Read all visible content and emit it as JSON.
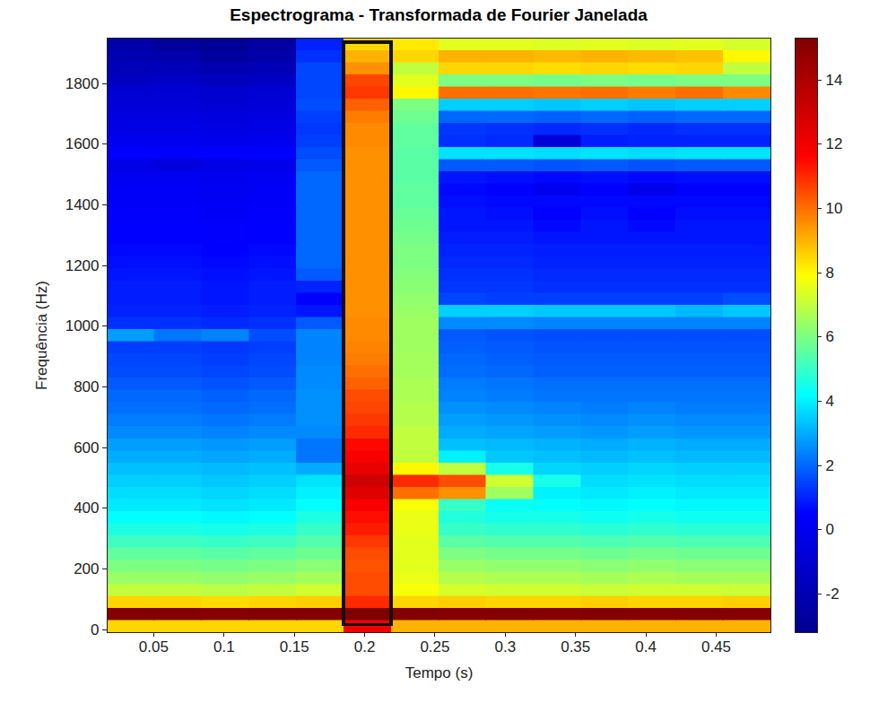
{
  "chart_data": {
    "type": "heatmap",
    "title": "Espectrograma - Transformada de Fourier Janelada",
    "xlabel": "Tempo (s)",
    "ylabel": "Frequência (Hz)",
    "xlim": [
      0.0169,
      0.4889
    ],
    "ylim": [
      -10,
      1950
    ],
    "xticks": [
      0.05,
      0.1,
      0.15,
      0.2,
      0.25,
      0.3,
      0.35,
      0.4,
      0.45
    ],
    "yticks": [
      0,
      200,
      400,
      600,
      800,
      1000,
      1200,
      1400,
      1600,
      1800
    ],
    "x_bins": [
      0.0169,
      0.0506,
      0.0843,
      0.118,
      0.1517,
      0.1854,
      0.2192,
      0.2529,
      0.2866,
      0.3203,
      0.354,
      0.3877,
      0.4214,
      0.4551,
      0.4889
    ],
    "y_bins": [
      -10,
      30,
      70,
      110,
      150,
      190,
      230,
      270,
      310,
      350,
      390,
      430,
      470,
      510,
      550,
      590,
      630,
      670,
      710,
      750,
      790,
      830,
      870,
      910,
      950,
      990,
      1030,
      1070,
      1110,
      1150,
      1190,
      1230,
      1270,
      1310,
      1350,
      1390,
      1430,
      1470,
      1510,
      1550,
      1590,
      1630,
      1670,
      1710,
      1750,
      1790,
      1830,
      1870,
      1910,
      1950
    ],
    "values": [
      [
        8.5,
        8.5,
        8.5,
        8.5,
        8.5,
        12,
        9,
        9,
        9,
        9,
        9,
        9,
        9,
        9
      ],
      [
        15.2,
        15.2,
        15.1,
        15.2,
        15.2,
        15.3,
        15.2,
        15.1,
        15.2,
        15.1,
        15.2,
        15.1,
        15.2,
        15.1
      ],
      [
        8.5,
        8.5,
        8.4,
        8.5,
        8.6,
        11,
        8.5,
        8.6,
        8.5,
        8.5,
        8.6,
        8.5,
        8.5,
        8.6
      ],
      [
        7,
        7,
        6.9,
        7,
        7.2,
        10.5,
        7.8,
        7.3,
        7.2,
        7.2,
        7.1,
        7.2,
        7.2,
        7.1
      ],
      [
        6.4,
        6.4,
        6.3,
        6.4,
        6.6,
        10.5,
        7.6,
        6.8,
        6.7,
        6.7,
        6.6,
        6.7,
        6.6,
        6.6
      ],
      [
        6,
        6,
        5.9,
        6,
        6.2,
        10.4,
        7.5,
        6.4,
        6.3,
        6.3,
        6.2,
        6.3,
        6.2,
        6.2
      ],
      [
        5.6,
        5.6,
        5.5,
        5.6,
        5.8,
        10.5,
        7.5,
        6,
        5.9,
        5.9,
        5.8,
        5.9,
        5.8,
        5.8
      ],
      [
        5.1,
        5.1,
        5,
        5.1,
        5.4,
        10.8,
        7.5,
        5.5,
        5.4,
        5.4,
        5.3,
        5.4,
        5.3,
        5.3
      ],
      [
        4.6,
        4.6,
        4.5,
        4.6,
        5,
        11.2,
        7.6,
        5,
        4.9,
        4.9,
        4.8,
        4.9,
        4.8,
        4.8
      ],
      [
        4.2,
        4.2,
        4.1,
        4.2,
        4.6,
        11.4,
        7.6,
        4.7,
        4.5,
        4.5,
        4.4,
        4.5,
        4.4,
        4.4
      ],
      [
        3.9,
        3.9,
        3.8,
        3.9,
        4.2,
        11.8,
        7.8,
        5,
        4.3,
        4.2,
        4.1,
        4.2,
        4.1,
        4.1
      ],
      [
        3.7,
        3.7,
        3.6,
        3.7,
        4,
        12.5,
        10,
        9.5,
        6.5,
        4,
        3.9,
        4,
        3.9,
        3.9
      ],
      [
        3.5,
        3.5,
        3.4,
        3.5,
        3.8,
        13,
        11,
        10.5,
        7.2,
        4.5,
        3.7,
        3.8,
        3.7,
        3.7
      ],
      [
        3.3,
        3.3,
        3.2,
        3.3,
        3,
        12.2,
        8,
        7,
        4.5,
        3.6,
        3.5,
        3.6,
        3.5,
        3.5
      ],
      [
        3,
        3,
        2.9,
        3,
        2.2,
        11.8,
        7,
        4,
        3.4,
        3.3,
        3.2,
        3.3,
        3.2,
        3.2
      ],
      [
        2.8,
        2.8,
        2.7,
        2.8,
        2.2,
        11.5,
        7,
        3.3,
        3.2,
        3.1,
        3,
        3.1,
        3,
        3
      ],
      [
        2.5,
        2.5,
        2.4,
        2.5,
        2.5,
        11,
        7,
        3,
        2.9,
        2.8,
        2.7,
        2.8,
        2.7,
        2.7
      ],
      [
        2.3,
        2.3,
        2.2,
        2.3,
        2.6,
        10.8,
        6.8,
        2.8,
        2.7,
        2.6,
        2.5,
        2.6,
        2.5,
        2.5
      ],
      [
        2.1,
        2.1,
        2,
        2.1,
        2.6,
        10.6,
        6.8,
        2.6,
        2.5,
        2.4,
        2.3,
        2.4,
        2.3,
        2.3
      ],
      [
        2,
        2,
        1.9,
        2,
        2.6,
        10.5,
        6.7,
        2.4,
        2.3,
        2.2,
        2.2,
        2.2,
        2.2,
        2.2
      ],
      [
        1.8,
        1.8,
        1.7,
        1.8,
        2.5,
        10.2,
        6.7,
        2.3,
        2.2,
        2.1,
        2.1,
        2.1,
        2.1,
        2.1
      ],
      [
        1.6,
        1.6,
        1.5,
        1.6,
        2.5,
        10,
        6.6,
        2.1,
        2,
        1.9,
        1.9,
        1.9,
        1.9,
        1.9
      ],
      [
        1.5,
        1.5,
        1.4,
        1.5,
        2.4,
        9.8,
        6.6,
        2,
        1.9,
        1.8,
        1.8,
        1.8,
        1.8,
        1.8
      ],
      [
        1.4,
        1.4,
        1.3,
        1.4,
        2.4,
        9.7,
        6.5,
        1.9,
        1.8,
        1.7,
        1.7,
        1.7,
        1.7,
        1.7
      ],
      [
        2.8,
        2.2,
        2.4,
        1.6,
        2.4,
        9.6,
        6.5,
        1.8,
        1.7,
        1.6,
        1.6,
        1.6,
        1.6,
        1.6
      ],
      [
        1.2,
        1.2,
        1.1,
        1.2,
        1.8,
        9.6,
        6.5,
        2.5,
        2.5,
        2.4,
        2.4,
        2.4,
        2.4,
        2.4
      ],
      [
        1,
        1,
        0.9,
        1,
        0.8,
        9.5,
        6.4,
        3.5,
        3.5,
        3.4,
        3.4,
        3.4,
        3.2,
        3.4
      ],
      [
        0.9,
        0.9,
        0.8,
        0.9,
        0.5,
        9.5,
        6.3,
        1.5,
        1.4,
        1.4,
        1.4,
        1.4,
        1.4,
        1.6
      ],
      [
        0.9,
        0.9,
        0.8,
        0.9,
        1,
        9.5,
        6.2,
        1.3,
        1.3,
        1.2,
        1.2,
        1.2,
        1.2,
        1.2
      ],
      [
        0.8,
        0.8,
        0.7,
        0.8,
        1.8,
        9.5,
        6.1,
        1.2,
        1.2,
        1.1,
        1.1,
        1.1,
        1.1,
        1.1
      ],
      [
        0.7,
        0.7,
        0.6,
        0.7,
        2,
        9.5,
        6,
        1.1,
        1.1,
        1,
        1,
        1,
        1,
        1
      ],
      [
        0.6,
        0.6,
        0.5,
        0.6,
        2,
        9.5,
        6,
        1,
        1,
        0.9,
        0.9,
        0.9,
        0.9,
        0.9
      ],
      [
        0.5,
        0.5,
        0.4,
        0.5,
        2,
        9.5,
        5.9,
        0.9,
        0.9,
        0.8,
        0.8,
        0.8,
        0.8,
        0.8
      ],
      [
        0.5,
        0.5,
        0.4,
        0.5,
        2,
        9.5,
        5.8,
        0.8,
        0.8,
        0.6,
        0.8,
        0.6,
        0.8,
        0.8
      ],
      [
        0.4,
        0.4,
        0.3,
        0.4,
        2,
        9.5,
        5.7,
        0.8,
        0.7,
        0.5,
        0.7,
        0.5,
        0.7,
        0.7
      ],
      [
        0.3,
        0.3,
        0.2,
        0.3,
        2,
        9.5,
        5.6,
        0.7,
        0.6,
        0.6,
        0.6,
        0.6,
        0.6,
        0.6
      ],
      [
        0.2,
        0.2,
        0.1,
        0.2,
        2,
        9.5,
        5.6,
        0.6,
        0.5,
        0,
        0.5,
        -0.2,
        0.5,
        0.5
      ],
      [
        0.1,
        0.1,
        0,
        0.1,
        2,
        9.5,
        5.5,
        0.8,
        0.7,
        0.6,
        0.7,
        0.6,
        0.7,
        0.7
      ],
      [
        -0.3,
        -0.6,
        -0.3,
        -0.2,
        1.8,
        9.5,
        5.5,
        1.8,
        1.8,
        1.7,
        1.8,
        1.7,
        1.8,
        1.8
      ],
      [
        0.5,
        0.4,
        0.5,
        0.5,
        1.6,
        9.5,
        5.5,
        3.8,
        3.8,
        3.7,
        3.8,
        3.7,
        3.8,
        3.8
      ],
      [
        0,
        0,
        -0.1,
        0,
        1.4,
        9.6,
        5.6,
        1.2,
        1.1,
        -0.8,
        0.9,
        1,
        1,
        1
      ],
      [
        -0.3,
        -0.3,
        -0.4,
        -0.3,
        1.3,
        9.6,
        5.6,
        1.3,
        1.2,
        1.1,
        1.2,
        1.1,
        1.2,
        1.2
      ],
      [
        -0.5,
        -0.5,
        -0.6,
        -0.5,
        1.4,
        9.8,
        5.8,
        2,
        2,
        1.9,
        2,
        1.9,
        2,
        2
      ],
      [
        -0.8,
        -0.8,
        -0.9,
        -0.8,
        1.6,
        10.2,
        6,
        3.5,
        3.5,
        3.4,
        3.5,
        3.4,
        3.5,
        3.5
      ],
      [
        -1,
        -1,
        -1.1,
        -1,
        1.5,
        10.8,
        8,
        10,
        10,
        9.9,
        10,
        9.8,
        10,
        9.6
      ],
      [
        -1.5,
        -1.3,
        -1.6,
        -1.4,
        1.5,
        10.6,
        7.5,
        6,
        6,
        5.9,
        6,
        5.9,
        6,
        6
      ],
      [
        -1.8,
        -1.8,
        -2,
        -1.9,
        1.5,
        9.5,
        7,
        8.5,
        8.5,
        8.4,
        8.5,
        8.4,
        8.5,
        7
      ],
      [
        -2,
        -2.2,
        -2.6,
        -2.3,
        1.2,
        9,
        8.5,
        9,
        9,
        8.9,
        9,
        8.9,
        8.8,
        8
      ],
      [
        -2.3,
        -2.8,
        -2.9,
        -2.5,
        1,
        8.5,
        8.2,
        7.5,
        7.5,
        7.4,
        7.5,
        7.4,
        7.5,
        7.3
      ]
    ],
    "color": "jet",
    "colorbar": {
      "range": [
        -3.2,
        15.3
      ],
      "ticks": [
        -2,
        0,
        2,
        4,
        6,
        8,
        10,
        12,
        14
      ]
    },
    "highlight": {
      "x": [
        0.1854,
        0.2192
      ],
      "y": [
        15,
        1935
      ]
    },
    "grid": false
  }
}
